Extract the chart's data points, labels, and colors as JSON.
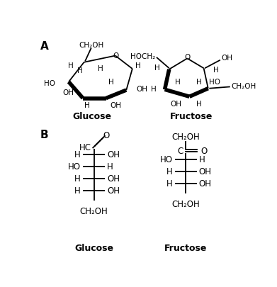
{
  "bg_color": "#ffffff",
  "label_A": "A",
  "label_B": "B",
  "glucose_label_A": "Glucose",
  "fructose_label_A": "Fructose",
  "glucose_label_B": "Glucose",
  "fructose_label_B": "Fructose"
}
